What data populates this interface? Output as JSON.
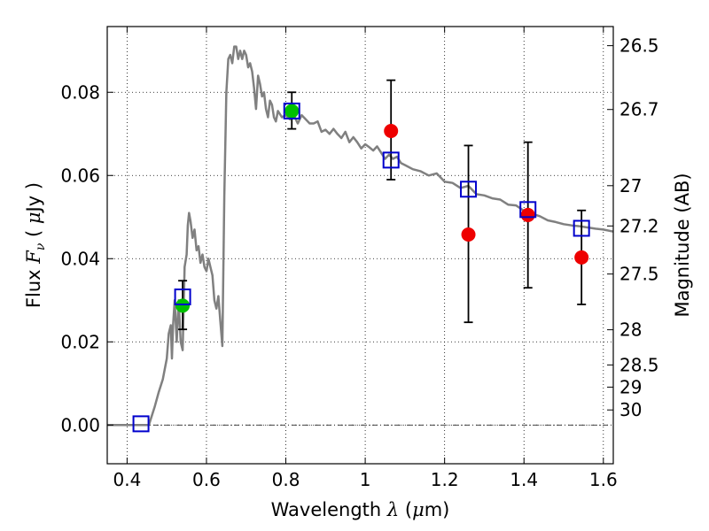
{
  "chart_data": {
    "type": "scatter",
    "x_axis": {
      "label_parts": [
        "Wavelength  ",
        "λ",
        " (",
        "μ",
        "m)"
      ],
      "range": [
        0.35,
        1.625
      ],
      "ticks": [
        0.4,
        0.6,
        0.8,
        1.0,
        1.2,
        1.4,
        1.6
      ],
      "tick_labels": [
        "0.4",
        "0.6",
        "0.8",
        "1",
        "1.2",
        "1.4",
        "1.6"
      ]
    },
    "y_axis": {
      "label_parts": [
        "Flux  ",
        "F",
        "ν",
        "  ( ",
        "μ",
        "Jy )"
      ],
      "range": [
        -0.0093,
        0.0958
      ],
      "ticks": [
        0.0,
        0.02,
        0.04,
        0.06,
        0.08
      ],
      "tick_labels": [
        "0.00",
        "0.02",
        "0.04",
        "0.06",
        "0.08"
      ]
    },
    "y2_axis": {
      "label": "Magnitude (AB)",
      "ticks": [
        26.5,
        26.7,
        27,
        27.2,
        27.5,
        28,
        28.5,
        29,
        30
      ],
      "tick_labels": [
        "26.5",
        "26.7",
        "27",
        "27.2",
        "27.5",
        "28",
        "28.5",
        "29",
        "30"
      ]
    },
    "grid": true,
    "zero_line": true,
    "model_sed": {
      "color": "#808080",
      "x": [
        0.35,
        0.455,
        0.47,
        0.48,
        0.49,
        0.5,
        0.505,
        0.51,
        0.513,
        0.516,
        0.52,
        0.525,
        0.53,
        0.535,
        0.54,
        0.545,
        0.55,
        0.553,
        0.556,
        0.56,
        0.565,
        0.57,
        0.575,
        0.58,
        0.585,
        0.59,
        0.595,
        0.6,
        0.605,
        0.61,
        0.615,
        0.62,
        0.625,
        0.63,
        0.635,
        0.64,
        0.645,
        0.65,
        0.655,
        0.66,
        0.665,
        0.67,
        0.675,
        0.68,
        0.685,
        0.69,
        0.695,
        0.7,
        0.705,
        0.71,
        0.715,
        0.72,
        0.725,
        0.73,
        0.735,
        0.74,
        0.745,
        0.75,
        0.755,
        0.76,
        0.765,
        0.77,
        0.775,
        0.78,
        0.79,
        0.8,
        0.81,
        0.82,
        0.83,
        0.84,
        0.85,
        0.86,
        0.87,
        0.88,
        0.89,
        0.9,
        0.91,
        0.92,
        0.93,
        0.94,
        0.95,
        0.96,
        0.97,
        0.98,
        0.99,
        1.0,
        1.01,
        1.02,
        1.03,
        1.04,
        1.05,
        1.06,
        1.07,
        1.08,
        1.09,
        1.1,
        1.12,
        1.14,
        1.16,
        1.18,
        1.2,
        1.22,
        1.24,
        1.26,
        1.28,
        1.3,
        1.32,
        1.34,
        1.36,
        1.38,
        1.4,
        1.42,
        1.44,
        1.46,
        1.48,
        1.5,
        1.52,
        1.54,
        1.56,
        1.58,
        1.6,
        1.625
      ],
      "y": [
        0.0,
        0.0,
        0.0045,
        0.008,
        0.011,
        0.016,
        0.022,
        0.024,
        0.016,
        0.024,
        0.03,
        0.02,
        0.03,
        0.02,
        0.018,
        0.038,
        0.041,
        0.048,
        0.051,
        0.049,
        0.045,
        0.047,
        0.042,
        0.043,
        0.039,
        0.041,
        0.038,
        0.037,
        0.04,
        0.038,
        0.036,
        0.03,
        0.028,
        0.031,
        0.025,
        0.019,
        0.055,
        0.08,
        0.088,
        0.089,
        0.087,
        0.091,
        0.091,
        0.088,
        0.09,
        0.088,
        0.09,
        0.089,
        0.086,
        0.087,
        0.085,
        0.081,
        0.076,
        0.084,
        0.082,
        0.079,
        0.08,
        0.076,
        0.074,
        0.078,
        0.077,
        0.074,
        0.073,
        0.0755,
        0.074,
        0.0745,
        0.0735,
        0.0745,
        0.0725,
        0.0745,
        0.0735,
        0.0725,
        0.0725,
        0.073,
        0.0705,
        0.071,
        0.07,
        0.0712,
        0.07,
        0.069,
        0.0705,
        0.068,
        0.0692,
        0.068,
        0.0665,
        0.0675,
        0.0668,
        0.066,
        0.067,
        0.0655,
        0.064,
        0.065,
        0.064,
        0.0645,
        0.063,
        0.0625,
        0.0615,
        0.061,
        0.06,
        0.0605,
        0.0585,
        0.0582,
        0.057,
        0.0575,
        0.0555,
        0.0552,
        0.0545,
        0.0542,
        0.053,
        0.0528,
        0.0515,
        0.0508,
        0.0502,
        0.0492,
        0.0488,
        0.0483,
        0.048,
        0.0478,
        0.0475,
        0.0472,
        0.047,
        0.0465
      ]
    },
    "model_photometry": {
      "marker": "open-square",
      "color": "#0000cc",
      "x": [
        0.435,
        0.54,
        0.815,
        1.065,
        1.26,
        1.41,
        1.545
      ],
      "y": [
        0.0003,
        0.0308,
        0.0755,
        0.0637,
        0.0567,
        0.0518,
        0.0473
      ]
    },
    "obs_optical": {
      "marker": "filled-circle",
      "color": "#00c000",
      "x": [
        0.54,
        0.815
      ],
      "y": [
        0.0287,
        0.0755
      ],
      "err_low": [
        0.0057,
        0.0043
      ],
      "err_high": [
        0.006,
        0.0045
      ]
    },
    "obs_nir": {
      "marker": "filled-circle",
      "color": "#ee0000",
      "x": [
        1.065,
        1.26,
        1.41,
        1.545
      ],
      "y": [
        0.0707,
        0.0458,
        0.0505,
        0.0403
      ],
      "err_low": [
        0.0117,
        0.0211,
        0.0175,
        0.0113
      ],
      "err_high": [
        0.0122,
        0.0214,
        0.0175,
        0.0113
      ]
    }
  }
}
